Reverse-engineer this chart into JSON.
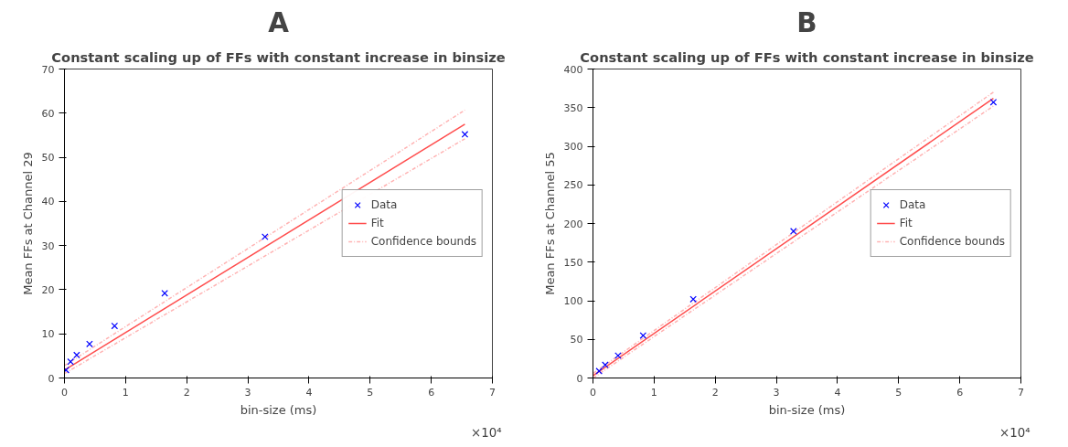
{
  "chart_data": [
    {
      "type": "scatter",
      "title": "Constant scaling up of FFs with constant increase in binsize",
      "xlabel": "bin-size (ms)",
      "ylabel": "Mean FFs at Channel 29",
      "annotations": [
        "A",
        "×10⁴"
      ],
      "xlim": [
        0,
        7
      ],
      "xticks": [
        0,
        1,
        2,
        3,
        4,
        5,
        6,
        7
      ],
      "ylim": [
        0,
        70
      ],
      "yticks": [
        0,
        10,
        20,
        30,
        40,
        50,
        60,
        70
      ],
      "grid": false,
      "legend": "right",
      "series": [
        {
          "name": "Data",
          "marker": "cross",
          "color": "#0000ff",
          "x": [
            0.026,
            0.1,
            0.2,
            0.41,
            0.82,
            1.64,
            3.28,
            6.55
          ],
          "values": [
            1.8,
            3.7,
            5.2,
            7.7,
            11.8,
            19.2,
            32.0,
            55.2
          ]
        },
        {
          "name": "Fit",
          "type": "line",
          "line_style": "solid",
          "color": "#ff4d4d",
          "x": [
            0,
            6.55
          ],
          "values": [
            1.8,
            57.5
          ]
        },
        {
          "name": "Confidence bounds",
          "type": "line",
          "line_style": "dashed",
          "color": "#ffb3b3",
          "x": [
            0,
            6.55
          ],
          "values": [
            2.8,
            60.7
          ]
        },
        {
          "type": "line",
          "line_style": "dashed",
          "color": "#ffb3b3",
          "x": [
            0,
            6.55
          ],
          "values": [
            1.0,
            54.2
          ]
        }
      ]
    },
    {
      "type": "scatter",
      "title": "Constant scaling up of FFs with constant increase in binsize",
      "xlabel": "bin-size (ms)",
      "ylabel": "Mean FFs at Channel 55",
      "annotations": [
        "B",
        "×10⁴"
      ],
      "xlim": [
        0,
        7
      ],
      "xticks": [
        0,
        1,
        2,
        3,
        4,
        5,
        6,
        7
      ],
      "ylim": [
        0,
        400
      ],
      "yticks": [
        0,
        50,
        100,
        150,
        200,
        250,
        300,
        350,
        400
      ],
      "grid": false,
      "legend": "right",
      "series": [
        {
          "name": "Data",
          "marker": "cross",
          "color": "#0000ff",
          "x": [
            0.1,
            0.2,
            0.41,
            0.82,
            1.64,
            3.28,
            6.55
          ],
          "values": [
            9,
            17,
            29,
            55,
            102,
            190,
            357
          ]
        },
        {
          "name": "Fit",
          "type": "line",
          "line_style": "solid",
          "color": "#ff4d4d",
          "x": [
            0.003,
            6.55
          ],
          "values": [
            3,
            362
          ]
        },
        {
          "name": "Confidence bounds",
          "type": "line",
          "line_style": "dashed",
          "color": "#ffb3b3",
          "x": [
            0.003,
            6.55
          ],
          "values": [
            6,
            370
          ]
        },
        {
          "type": "line",
          "line_style": "dashed",
          "color": "#ffb3b3",
          "x": [
            0.003,
            6.55
          ],
          "values": [
            0,
            352
          ]
        }
      ]
    }
  ]
}
